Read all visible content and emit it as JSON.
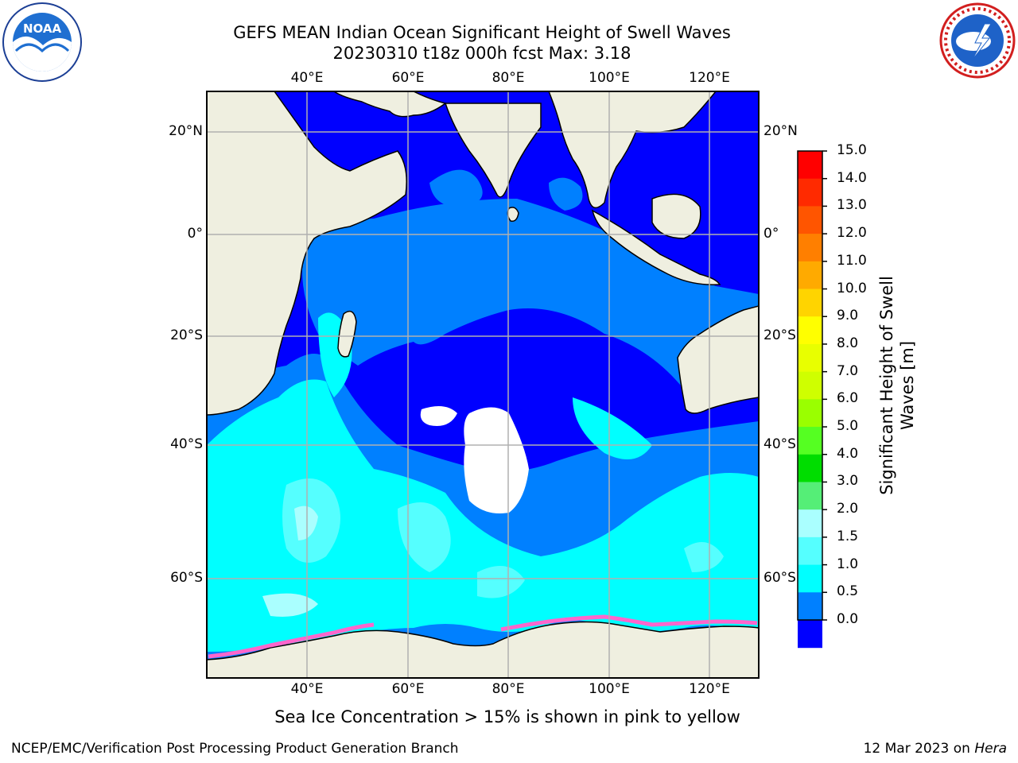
{
  "header": {
    "title_line1": "GEFS MEAN Indian Ocean Significant Height of Swell Waves",
    "title_line2": "20230310 t18z 000h fcst   Max: 3.18"
  },
  "logos": {
    "left": "noaa-logo",
    "left_text": "NOAA",
    "right": "nws-logo"
  },
  "map": {
    "lon_labels": [
      "40°E",
      "60°E",
      "80°E",
      "100°E",
      "120°E"
    ],
    "lat_labels": [
      "20°N",
      "0°",
      "20°S",
      "40°S",
      "60°S"
    ],
    "gridlines": true,
    "colors": {
      "land": "#efefe0",
      "sea_ice": "#ff66cc",
      "no_data": "#ffffff"
    }
  },
  "colorbar": {
    "title_line1": "Significant Height of Swell",
    "title_line2": "Waves [m]",
    "ticks": [
      "15.0",
      "14.0",
      "13.0",
      "12.0",
      "11.0",
      "10.0",
      "9.0",
      "8.0",
      "7.0",
      "6.0",
      "5.0",
      "4.0",
      "3.0",
      "2.0",
      "1.5",
      "1.0",
      "0.5",
      "0.0"
    ],
    "colors_top_to_bottom": [
      "#ff0000",
      "#ff2a00",
      "#ff5500",
      "#ff7f00",
      "#ffaa00",
      "#ffd400",
      "#ffff00",
      "#e8ff00",
      "#cfff00",
      "#9aff00",
      "#55ff22",
      "#00dd00",
      "#55ee77",
      "#aaffff",
      "#55ffff",
      "#00ffff",
      "#0080ff",
      "#0000ff"
    ]
  },
  "notes": {
    "sea_ice": "Sea Ice Concentration > 15% is shown in pink to yellow"
  },
  "footer": {
    "left": "NCEP/EMC/Verification Post Processing Product Generation Branch",
    "right_prefix": "12 Mar 2023 on ",
    "right_host": "Hera"
  }
}
